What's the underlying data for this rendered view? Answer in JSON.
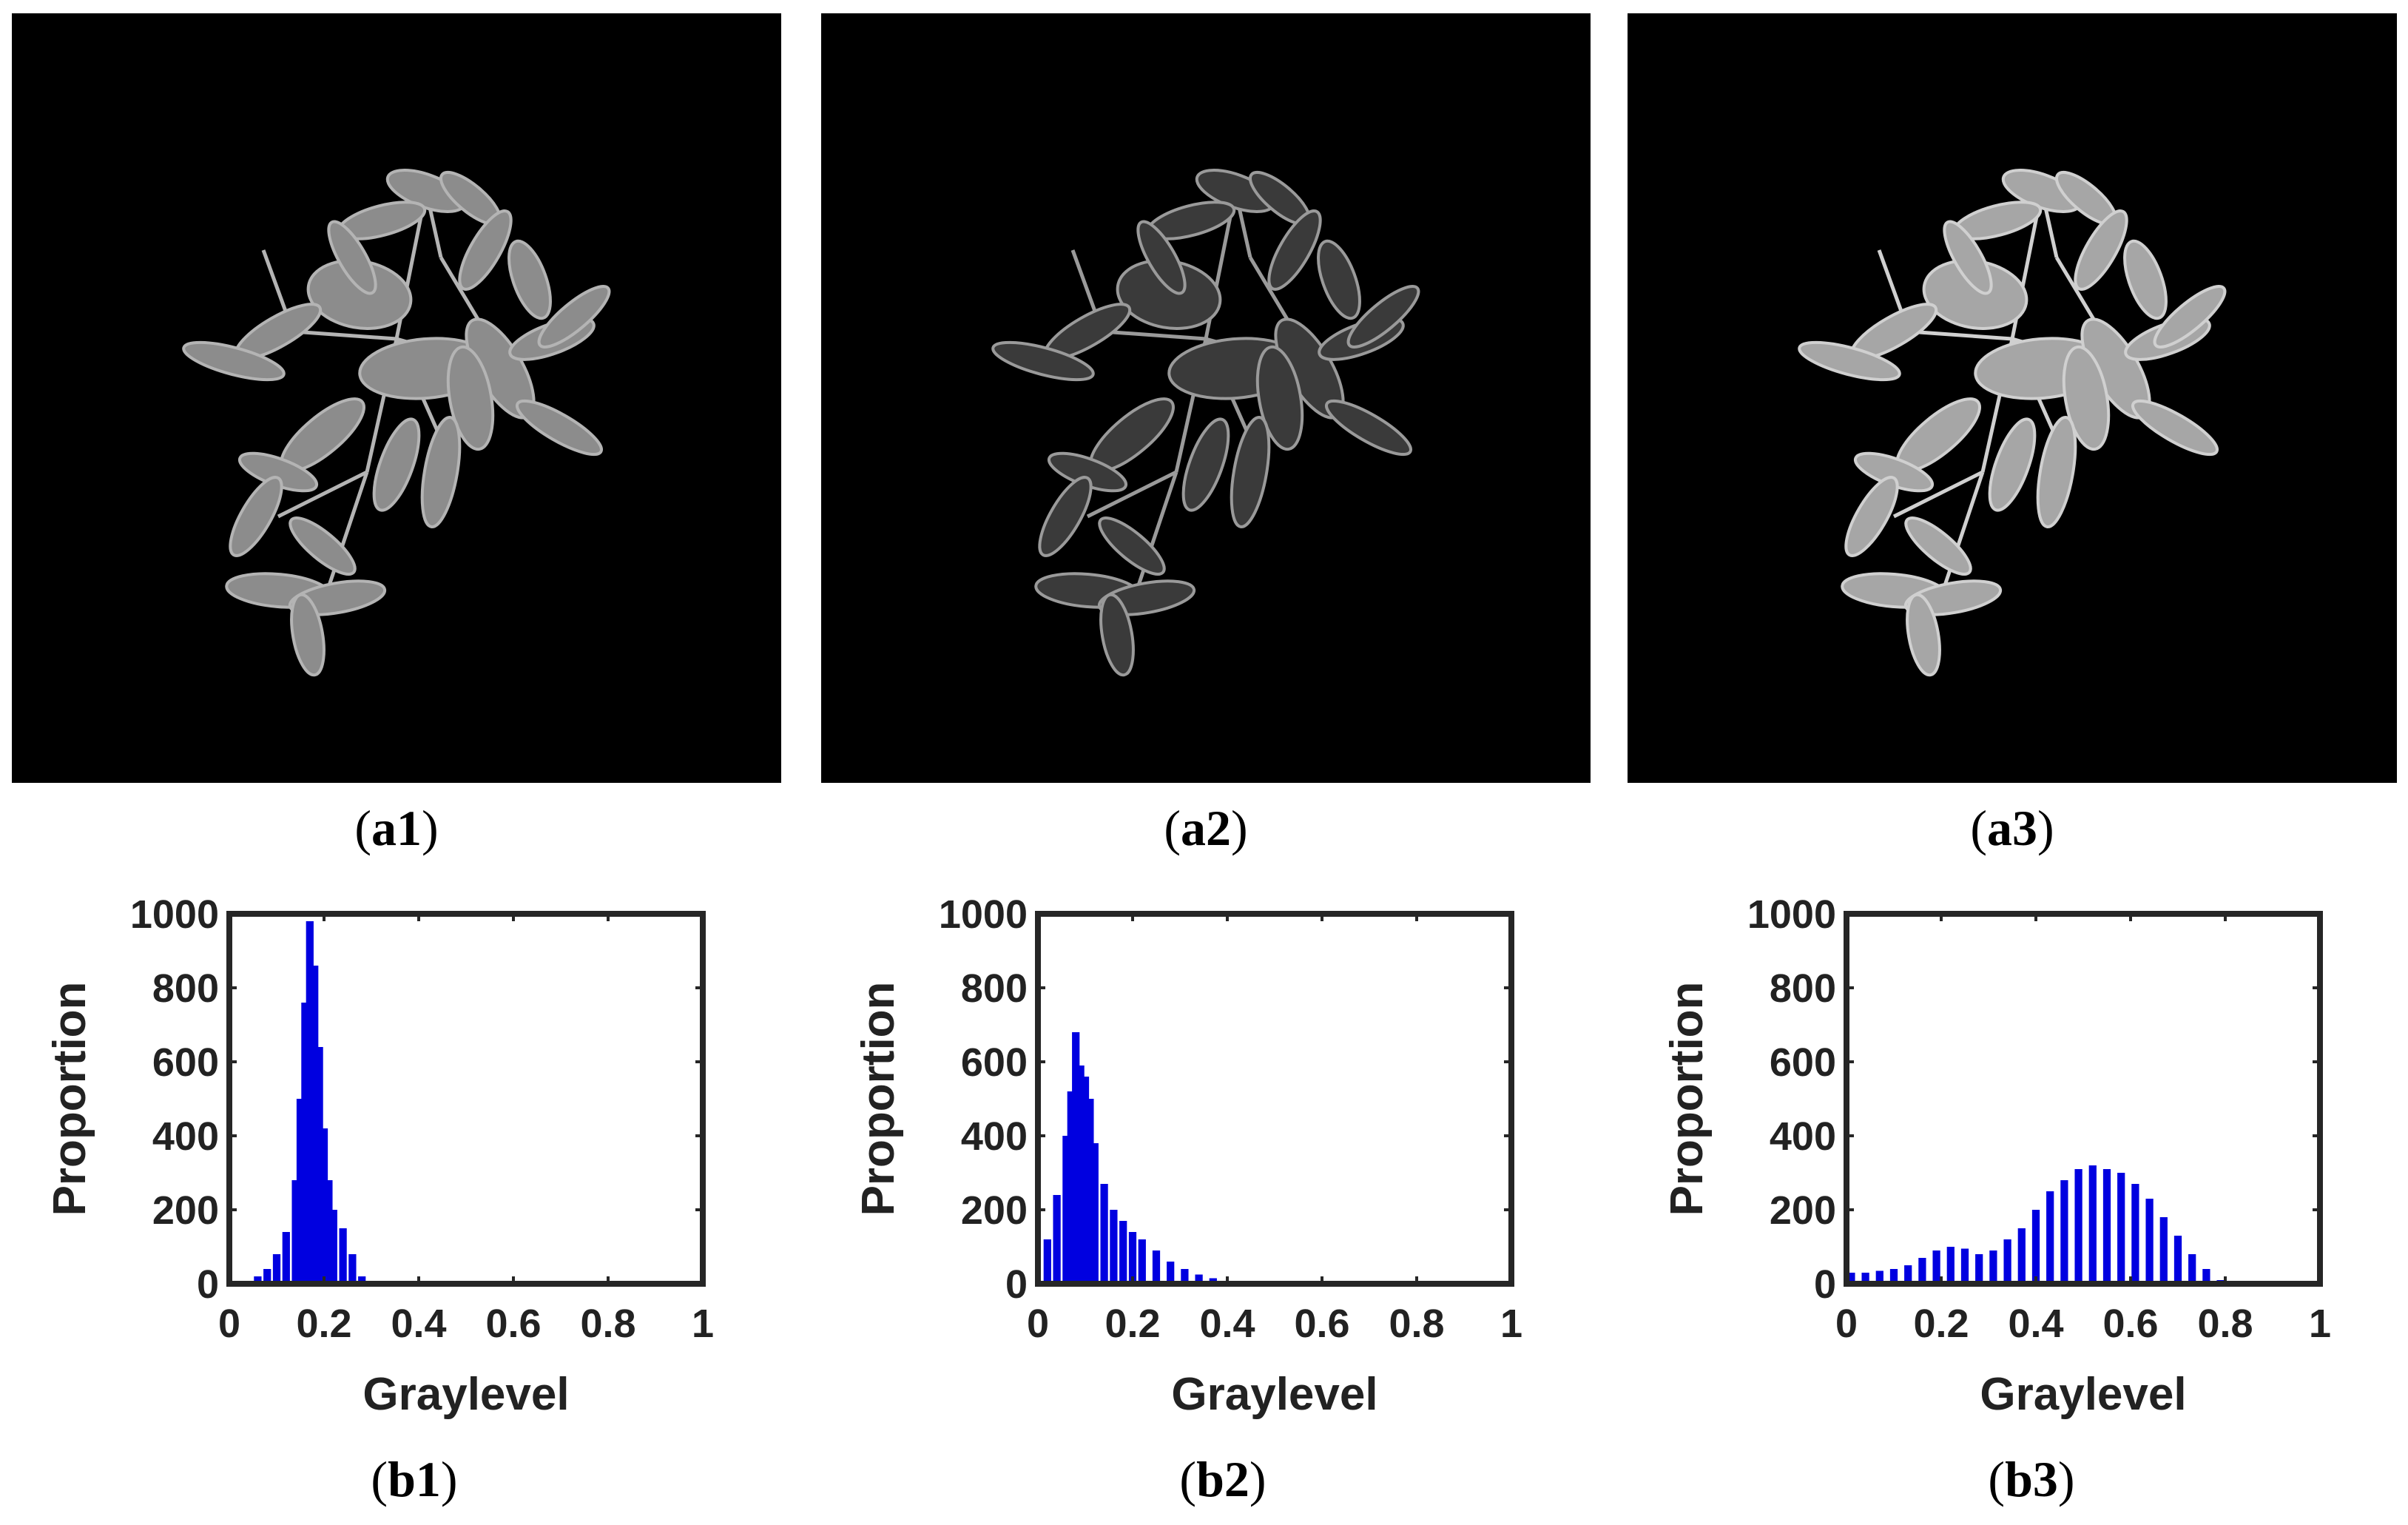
{
  "panels": [
    {
      "image_caption_letter": "a",
      "image_caption_num": "1",
      "hist_caption_letter": "b",
      "hist_caption_num": "1",
      "leaf_fill": "#8c8c8c",
      "leaf_edge": "#b4b4b4"
    },
    {
      "image_caption_letter": "a",
      "image_caption_num": "2",
      "hist_caption_letter": "b",
      "hist_caption_num": "2",
      "leaf_fill": "#3a3a3a",
      "leaf_edge": "#9a9a9a"
    },
    {
      "image_caption_letter": "a",
      "image_caption_num": "3",
      "hist_caption_letter": "b",
      "hist_caption_num": "3",
      "leaf_fill": "#a6a6a6",
      "leaf_edge": "#d0d0d0"
    }
  ],
  "chart_data": [
    {
      "type": "bar",
      "title": "",
      "xlabel": "Graylevel",
      "ylabel": "Proportion",
      "xlim": [
        0,
        1
      ],
      "ylim": [
        0,
        1000
      ],
      "xticks": [
        "0",
        "0.2",
        "0.4",
        "0.6",
        "0.8",
        "1"
      ],
      "yticks": [
        "0",
        "200",
        "400",
        "600",
        "800",
        "1000"
      ],
      "bar_color": "#0000e0",
      "x": [
        0.04,
        0.06,
        0.08,
        0.1,
        0.12,
        0.14,
        0.15,
        0.16,
        0.17,
        0.18,
        0.19,
        0.2,
        0.21,
        0.22,
        0.24,
        0.26,
        0.28
      ],
      "values": [
        5,
        20,
        40,
        80,
        140,
        280,
        500,
        760,
        980,
        860,
        640,
        420,
        280,
        200,
        150,
        80,
        20
      ],
      "grid": false
    },
    {
      "type": "bar",
      "title": "",
      "xlabel": "Graylevel",
      "ylabel": "Proportion",
      "xlim": [
        0,
        1
      ],
      "ylim": [
        0,
        1000
      ],
      "xticks": [
        "0",
        "0.2",
        "0.4",
        "0.6",
        "0.8",
        "1"
      ],
      "yticks": [
        "0",
        "200",
        "400",
        "600",
        "800",
        "1000"
      ],
      "bar_color": "#0000e0",
      "x": [
        0.02,
        0.04,
        0.06,
        0.07,
        0.08,
        0.09,
        0.1,
        0.11,
        0.12,
        0.14,
        0.16,
        0.18,
        0.2,
        0.22,
        0.25,
        0.28,
        0.31,
        0.34,
        0.37,
        0.4
      ],
      "values": [
        120,
        240,
        400,
        520,
        680,
        590,
        560,
        500,
        380,
        270,
        200,
        170,
        140,
        120,
        90,
        60,
        40,
        25,
        15,
        5
      ],
      "grid": false
    },
    {
      "type": "bar",
      "title": "",
      "xlabel": "Graylevel",
      "ylabel": "Proportion",
      "xlim": [
        0,
        1
      ],
      "ylim": [
        0,
        1000
      ],
      "xticks": [
        "0",
        "0.2",
        "0.4",
        "0.6",
        "0.8",
        "1"
      ],
      "yticks": [
        "0",
        "200",
        "400",
        "600",
        "800",
        "1000"
      ],
      "bar_color": "#0000e0",
      "x": [
        0.01,
        0.04,
        0.07,
        0.1,
        0.13,
        0.16,
        0.19,
        0.22,
        0.25,
        0.28,
        0.31,
        0.34,
        0.37,
        0.4,
        0.43,
        0.46,
        0.49,
        0.52,
        0.55,
        0.58,
        0.61,
        0.64,
        0.67,
        0.7,
        0.73,
        0.76,
        0.79
      ],
      "values": [
        30,
        30,
        35,
        40,
        50,
        70,
        90,
        100,
        95,
        80,
        90,
        120,
        150,
        200,
        250,
        280,
        310,
        320,
        310,
        300,
        270,
        230,
        180,
        130,
        80,
        40,
        10
      ],
      "grid": false
    }
  ]
}
